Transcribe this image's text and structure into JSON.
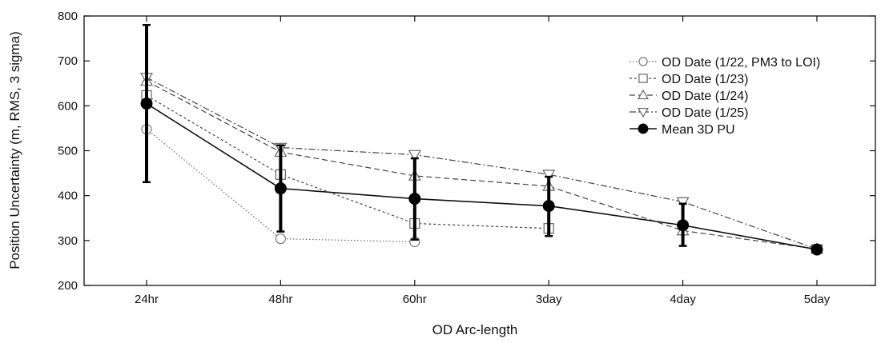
{
  "chart_data": {
    "type": "line",
    "title": "",
    "xlabel": "OD Arc-length",
    "ylabel": "Position Uncertainty (m, RMS, 3 sigma)",
    "categories": [
      "24hr",
      "48hr",
      "60hr",
      "3day",
      "4day",
      "5day"
    ],
    "ylim": [
      200,
      800
    ],
    "yticks": [
      200,
      300,
      400,
      500,
      600,
      700,
      800
    ],
    "grid": false,
    "legend_position": "top-right",
    "series": [
      {
        "name": "OD Date (1/22, PM3 to LOI)",
        "marker": "circle",
        "dash": "dotted",
        "values": [
          548,
          304,
          297,
          null,
          null,
          null
        ]
      },
      {
        "name": "OD Date (1/23)",
        "marker": "square",
        "dash": "short-dash",
        "values": [
          623,
          447,
          338,
          327,
          null,
          null
        ]
      },
      {
        "name": "OD Date (1/24)",
        "marker": "triangle-up",
        "dash": "dashed",
        "values": [
          655,
          497,
          444,
          421,
          322,
          281
        ]
      },
      {
        "name": "OD Date (1/25)",
        "marker": "triangle-down",
        "dash": "dash-dot",
        "values": [
          663,
          507,
          491,
          447,
          386,
          281
        ]
      },
      {
        "name": "Mean 3D PU",
        "marker": "filled-circle",
        "dash": "solid",
        "values": [
          605,
          416,
          393,
          377,
          334,
          280
        ],
        "error_low": [
          430,
          320,
          302,
          310,
          288,
          null
        ],
        "error_high": [
          780,
          512,
          483,
          442,
          382,
          null
        ]
      }
    ]
  }
}
